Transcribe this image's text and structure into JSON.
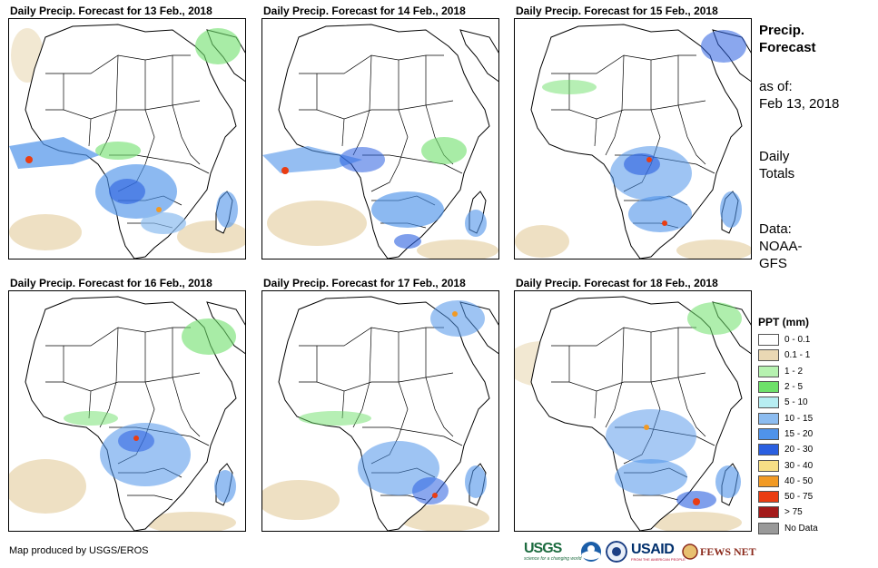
{
  "panels": [
    {
      "title": "Daily Precip. Forecast for 13 Feb., 2018"
    },
    {
      "title": "Daily Precip. Forecast for 14 Feb., 2018"
    },
    {
      "title": "Daily Precip. Forecast for 15 Feb., 2018"
    },
    {
      "title": "Daily Precip. Forecast for 16 Feb., 2018"
    },
    {
      "title": "Daily Precip. Forecast for 17 Feb., 2018"
    },
    {
      "title": "Daily Precip. Forecast for 18 Feb., 2018"
    }
  ],
  "side": {
    "title_line1": "Precip.",
    "title_line2": "Forecast",
    "asof_label": "as of:",
    "asof_date": "Feb 13, 2018",
    "daily_line1": "Daily",
    "daily_line2": "Totals",
    "data_line1": "Data:",
    "data_line2": "NOAA-",
    "data_line3": "GFS"
  },
  "legend": {
    "title": "PPT (mm)",
    "items": [
      {
        "label": "0 - 0.1",
        "color": "#ffffff"
      },
      {
        "label": "0.1 - 1",
        "color": "#ead8b4"
      },
      {
        "label": "1 - 2",
        "color": "#b6f2b0"
      },
      {
        "label": "2 - 5",
        "color": "#6ee06a"
      },
      {
        "label": "5 - 10",
        "color": "#b7eef2"
      },
      {
        "label": "10 - 15",
        "color": "#8cbcf0"
      },
      {
        "label": "15 - 20",
        "color": "#4f93ea"
      },
      {
        "label": "20 - 30",
        "color": "#2a5fe0"
      },
      {
        "label": "30 - 40",
        "color": "#f7df86"
      },
      {
        "label": "40 - 50",
        "color": "#f29a24"
      },
      {
        "label": "50 - 75",
        "color": "#ea3d12"
      },
      {
        "label": "> 75",
        "color": "#a31a1a"
      },
      {
        "label": "No Data",
        "color": "#999999"
      }
    ]
  },
  "footer": {
    "credit": "Map produced by USGS/EROS",
    "usgs_text": "USGS",
    "usgs_tagline": "science for a changing world",
    "usaid_text": "USAID",
    "usaid_tagline": "FROM THE AMERICAN PEOPLE",
    "fews_text": "FEWS NET"
  }
}
